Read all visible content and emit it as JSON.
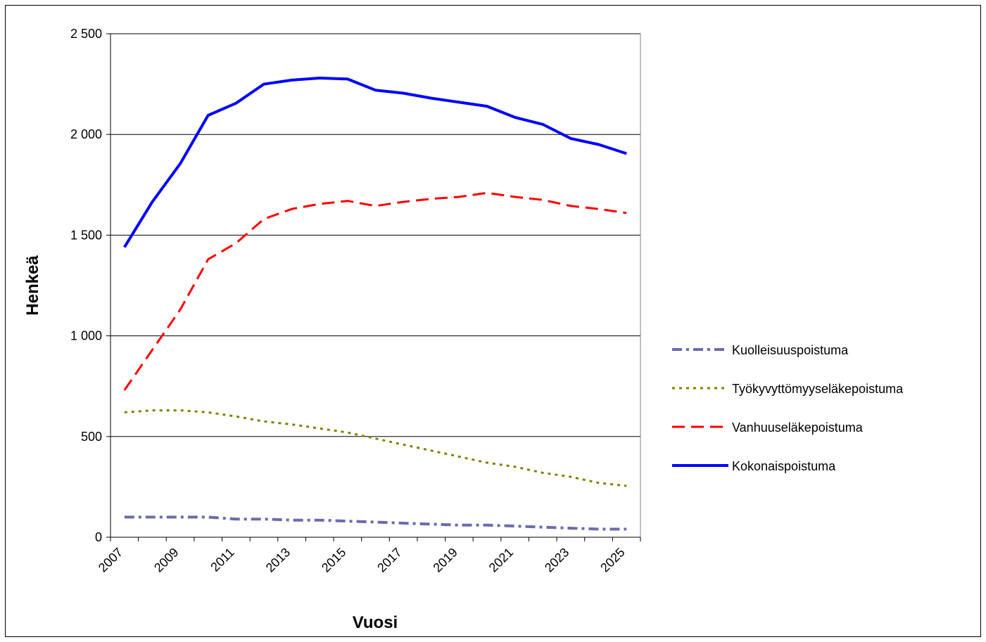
{
  "chart_data": {
    "type": "line",
    "title": "",
    "xlabel": "Vuosi",
    "ylabel": "Henkeä",
    "x": [
      2007,
      2008,
      2009,
      2010,
      2011,
      2012,
      2013,
      2014,
      2015,
      2016,
      2017,
      2018,
      2019,
      2020,
      2021,
      2022,
      2023,
      2024,
      2025
    ],
    "x_tick_labels": [
      "2007",
      "2009",
      "2011",
      "2013",
      "2015",
      "2017",
      "2019",
      "2021",
      "2023",
      "2025"
    ],
    "ylim": [
      0,
      2500
    ],
    "y_ticks": [
      0,
      500,
      1000,
      1500,
      2000,
      2500
    ],
    "y_tick_labels": [
      "0",
      "500",
      "1 000",
      "1 500",
      "2 000",
      "2 500"
    ],
    "grid": "horizontal major gridlines",
    "legend_position": "right",
    "series": [
      {
        "name": "Kuolleisuuspoistuma",
        "color": "#6b6bae",
        "style": "dash-dot",
        "values": [
          100,
          100,
          100,
          100,
          90,
          90,
          85,
          85,
          80,
          75,
          70,
          65,
          60,
          60,
          55,
          50,
          45,
          40,
          40
        ]
      },
      {
        "name": "Työkyvyttömyyseläkepoistuma",
        "color": "#808000",
        "style": "dotted",
        "values": [
          620,
          630,
          630,
          620,
          600,
          575,
          560,
          540,
          520,
          490,
          460,
          430,
          400,
          370,
          350,
          320,
          300,
          270,
          255
        ]
      },
      {
        "name": "Vanhuuseläkepoistuma",
        "color": "#ff0000",
        "style": "dashed",
        "values": [
          730,
          930,
          1130,
          1380,
          1460,
          1580,
          1630,
          1655,
          1670,
          1645,
          1665,
          1680,
          1690,
          1710,
          1690,
          1675,
          1645,
          1630,
          1610
        ]
      },
      {
        "name": "Kokonaispoistuma",
        "color": "#0000ff",
        "style": "solid",
        "values": [
          1440,
          1665,
          1855,
          2095,
          2155,
          2250,
          2270,
          2280,
          2275,
          2220,
          2205,
          2180,
          2160,
          2140,
          2085,
          2050,
          1980,
          1950,
          1905
        ]
      }
    ]
  }
}
